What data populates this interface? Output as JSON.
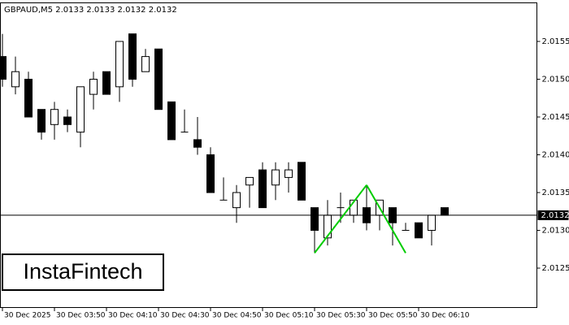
{
  "chart_data": {
    "type": "candlestick",
    "title": "GBPAUD,M5  2.0133 2.0133 2.0132 2.0132",
    "categories": [
      "30 Dec 2025",
      null,
      null,
      null,
      "30 Dec 03:50",
      null,
      null,
      null,
      "30 Dec 04:10",
      null,
      null,
      null,
      "30 Dec 04:30",
      null,
      null,
      null,
      "30 Dec 04:50",
      null,
      null,
      null,
      "30 Dec 05:10",
      null,
      null,
      null,
      "30 Dec 05:30",
      null,
      null,
      null,
      "30 Dec 05:50",
      null,
      null,
      null,
      "30 Dec 06:10",
      null,
      null
    ],
    "open": [
      2.0153,
      2.0149,
      2.015,
      2.0146,
      2.0144,
      2.0145,
      2.0143,
      2.0148,
      2.0151,
      2.0149,
      2.0156,
      2.0151,
      2.0154,
      2.0147,
      2.0143,
      2.0142,
      2.014,
      2.0134,
      2.0133,
      2.0136,
      2.0138,
      2.0136,
      2.0137,
      2.0139,
      2.0133,
      2.0129,
      2.0133,
      2.0132,
      2.0133,
      2.0132,
      2.0133,
      2.013,
      2.0131,
      2.013,
      2.0133
    ],
    "high": [
      2.0156,
      2.0153,
      2.0151,
      2.0146,
      2.0147,
      2.0146,
      2.0149,
      2.0151,
      2.0151,
      2.0155,
      2.0156,
      2.0154,
      2.0154,
      2.0147,
      2.0146,
      2.0145,
      2.0141,
      2.0137,
      2.0136,
      2.0137,
      2.0139,
      2.0139,
      2.0139,
      2.0139,
      2.0133,
      2.0134,
      2.0135,
      2.0134,
      2.0136,
      2.0134,
      2.0133,
      2.0131,
      2.0131,
      2.0132,
      2.0133
    ],
    "low": [
      2.0149,
      2.0148,
      2.0145,
      2.0142,
      2.0142,
      2.0143,
      2.0141,
      2.0146,
      2.0148,
      2.0147,
      2.0149,
      2.0151,
      2.0146,
      2.0142,
      2.0143,
      2.014,
      2.0135,
      2.0134,
      2.0131,
      2.0133,
      2.0133,
      2.0134,
      2.0135,
      2.0134,
      2.0127,
      2.0128,
      2.0131,
      2.0131,
      2.013,
      2.013,
      2.0128,
      2.013,
      2.0129,
      2.0128,
      2.0132
    ],
    "close": [
      2.015,
      2.0151,
      2.0145,
      2.0143,
      2.0146,
      2.0144,
      2.0149,
      2.015,
      2.0148,
      2.0155,
      2.015,
      2.0153,
      2.0146,
      2.0142,
      2.0143,
      2.0141,
      2.0135,
      2.0134,
      2.0135,
      2.0137,
      2.0133,
      2.0138,
      2.0138,
      2.0134,
      2.013,
      2.0132,
      2.0133,
      2.0134,
      2.0131,
      2.0134,
      2.0131,
      2.013,
      2.0129,
      2.0132,
      2.0132
    ],
    "pattern": {
      "color": "#00cc00",
      "values": [
        null,
        null,
        null,
        null,
        null,
        null,
        null,
        null,
        null,
        null,
        null,
        null,
        null,
        null,
        null,
        null,
        null,
        null,
        null,
        null,
        null,
        null,
        null,
        null,
        2.0127,
        null,
        null,
        null,
        2.0136,
        null,
        null,
        2.0127,
        null,
        null,
        null
      ]
    },
    "current_price": 2.0132,
    "ylim": [
      2.012,
      2.016
    ],
    "yticks": [
      2.0125,
      {
        "value": 2.013,
        "label": "2.0130"
      },
      2.0135,
      {
        "value": 2.014,
        "label": "2.0140"
      },
      2.0145,
      {
        "value": 2.015,
        "label": "2.0150"
      },
      2.0155
    ],
    "watermark": "InstaFintech"
  }
}
